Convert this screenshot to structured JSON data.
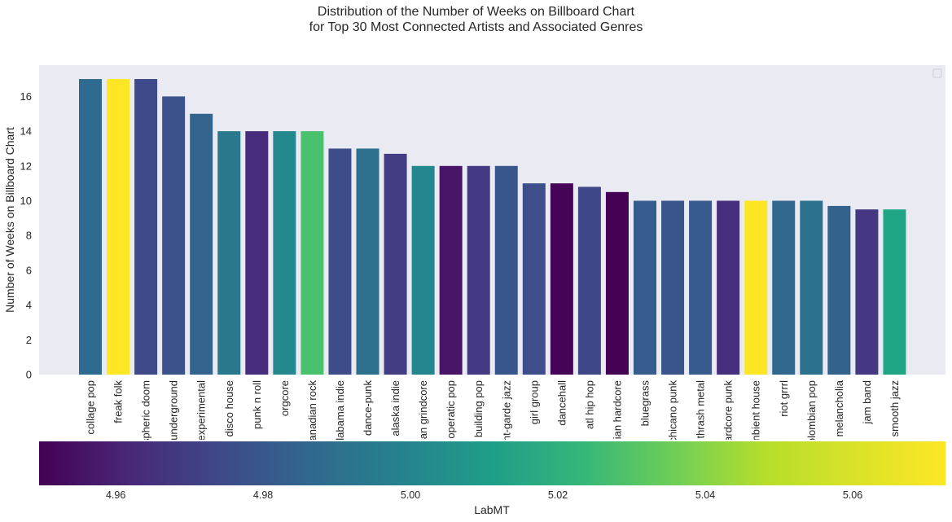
{
  "title_line1": "Distribution of the Number of Weeks on Billboard Chart",
  "title_line2": "for Top 30 Most Connected Artists and Associated Genres",
  "chart_data": {
    "type": "bar",
    "ylabel": "Number of Weeks on Billboard Chart",
    "ylim": [
      0,
      17.5
    ],
    "yticks": [
      0,
      2,
      4,
      6,
      8,
      10,
      12,
      14,
      16
    ],
    "grid": false,
    "legend": "top-right (empty)",
    "categories": [
      "collage pop",
      "freak folk",
      "spheric doom",
      "underground",
      "experimental",
      "disco house",
      "punk n roll",
      "orgcore",
      "anadian rock",
      "labama indie",
      "dance-punk",
      "alaska indie",
      "an grindcore",
      "operatic pop",
      "building pop",
      "nt-garde jazz",
      "girl group",
      "dancehall",
      "atl hip hop",
      "ian hardcore",
      "bluegrass",
      "chicano punk",
      "thrash metal",
      "ardcore punk",
      "nbient house",
      "riot grrrl",
      "olombian pop",
      "melancholia",
      "jam band",
      "smooth jazz"
    ],
    "values": [
      17,
      17,
      17,
      16,
      15,
      14,
      14,
      14,
      14,
      13,
      13,
      12.7,
      12,
      12,
      12,
      12,
      11,
      11,
      10.8,
      10.5,
      10,
      10,
      10,
      10,
      10,
      10,
      10,
      9.7,
      9.5,
      9.5
    ],
    "colors": [
      "#2f6b8e",
      "#fde725",
      "#3e4a89",
      "#3b528b",
      "#32648e",
      "#2a788e",
      "#472d7b",
      "#23898e",
      "#4ac16d",
      "#3e4c8a",
      "#2d708e",
      "#433d84",
      "#24868e",
      "#481467",
      "#443a83",
      "#39568c",
      "#3d4e8a",
      "#450457",
      "#3f4788",
      "#440154",
      "#365d8d",
      "#3a548c",
      "#375b8d",
      "#46307e",
      "#fde725",
      "#31688e",
      "#2c728e",
      "#33638d",
      "#453781",
      "#21a685"
    ],
    "colorbar": {
      "label": "LabMT",
      "min": 4.9496,
      "max": 5.0726,
      "ticks": [
        4.96,
        4.98,
        5.0,
        5.02,
        5.04,
        5.06
      ],
      "tick_labels": [
        "4.96",
        "4.98",
        "5.00",
        "5.02",
        "5.04",
        "5.06"
      ],
      "colormap": "viridis"
    }
  }
}
